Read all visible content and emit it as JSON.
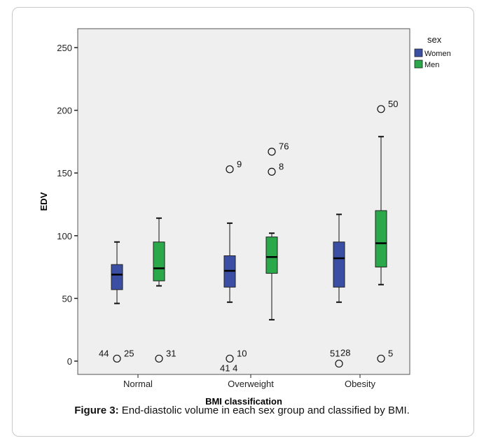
{
  "chart_data": {
    "type": "box",
    "xlabel": "BMI  classification",
    "ylabel": "EDV",
    "ylim": [
      -20,
      260
    ],
    "yticks": [
      0,
      50,
      100,
      150,
      200,
      250
    ],
    "categories": [
      "Normal",
      "Overweight",
      "Obesity"
    ],
    "legend": {
      "title": "sex",
      "position": "top-right"
    },
    "grid": false,
    "background": "#efefef",
    "series": [
      {
        "name": "Women",
        "color": "#3a4fa3",
        "boxes": [
          {
            "category": "Normal",
            "whisker_low": 46,
            "q1": 57,
            "median": 69,
            "q3": 77,
            "whisker_high": 95
          },
          {
            "category": "Overweight",
            "whisker_low": 47,
            "q1": 59,
            "median": 72,
            "q3": 84,
            "whisker_high": 110
          },
          {
            "category": "Obesity",
            "whisker_low": 47,
            "q1": 59,
            "median": 82,
            "q3": 95,
            "whisker_high": 117
          }
        ]
      },
      {
        "name": "Men",
        "color": "#2aa84a",
        "boxes": [
          {
            "category": "Normal",
            "whisker_low": 60,
            "q1": 64,
            "median": 74,
            "q3": 95,
            "whisker_high": 114
          },
          {
            "category": "Overweight",
            "whisker_low": 33,
            "q1": 70,
            "median": 83,
            "q3": 99,
            "whisker_high": 102
          },
          {
            "category": "Obesity",
            "whisker_low": 61,
            "q1": 75,
            "median": 94,
            "q3": 120,
            "whisker_high": 179
          }
        ]
      }
    ],
    "outliers": [
      {
        "category": "Normal",
        "series": "Women",
        "value": 2,
        "label": "44"
      },
      {
        "category": "Normal",
        "series": "Women",
        "value": 2,
        "label": "25"
      },
      {
        "category": "Normal",
        "series": "Men",
        "value": 2,
        "label": "31"
      },
      {
        "category": "Overweight",
        "series": "Women",
        "value": 153,
        "label": "9"
      },
      {
        "category": "Overweight",
        "series": "Women",
        "value": 2,
        "label": "10"
      },
      {
        "category": "Overweight",
        "series": "Women",
        "value": 2,
        "label": "41 4"
      },
      {
        "category": "Overweight",
        "series": "Men",
        "value": 167,
        "label": "76"
      },
      {
        "category": "Overweight",
        "series": "Men",
        "value": 151,
        "label": "8"
      },
      {
        "category": "Obesity",
        "series": "Women",
        "value": -2,
        "label": "51"
      },
      {
        "category": "Obesity",
        "series": "Women",
        "value": -2,
        "label": "28"
      },
      {
        "category": "Obesity",
        "series": "Men",
        "value": 201,
        "label": "50"
      },
      {
        "category": "Obesity",
        "series": "Men",
        "value": 2,
        "label": "5"
      }
    ]
  },
  "caption": {
    "label": "Figure 3:",
    "text": " End-diastolic volume in each sex group and classified by BMI."
  }
}
